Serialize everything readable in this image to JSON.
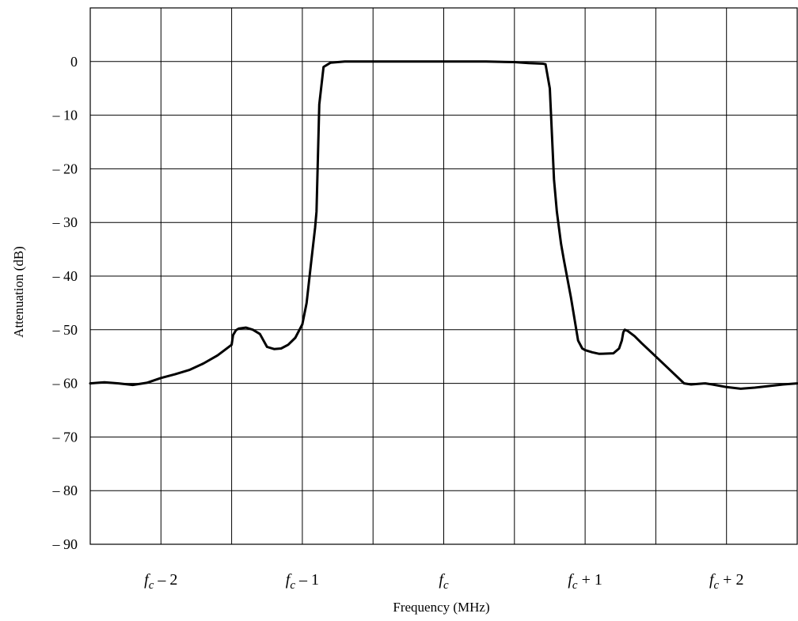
{
  "chart_data": {
    "type": "line",
    "xlabel": "Frequency (MHz)",
    "ylabel": "Attenuation (dB)",
    "xlim": [
      -2.5,
      2.5
    ],
    "ylim": [
      -90,
      10
    ],
    "grid": true,
    "y_ticks": [
      {
        "value": 0,
        "label": "0"
      },
      {
        "value": -10,
        "label": "– 10"
      },
      {
        "value": -20,
        "label": "– 20"
      },
      {
        "value": -30,
        "label": "– 30"
      },
      {
        "value": -40,
        "label": "– 40"
      },
      {
        "value": -50,
        "label": "– 50"
      },
      {
        "value": -60,
        "label": "– 60"
      },
      {
        "value": -70,
        "label": "– 70"
      },
      {
        "value": -80,
        "label": "– 80"
      },
      {
        "value": -90,
        "label": "– 90"
      }
    ],
    "x_gridlines": [
      -2,
      -1.5,
      -1,
      -0.5,
      0,
      0.5,
      1,
      1.5,
      2
    ],
    "x_ticks": [
      {
        "value": -2,
        "base": "f",
        "sub": "c",
        "suffix": " – 2"
      },
      {
        "value": -1,
        "base": "f",
        "sub": "c",
        "suffix": " – 1"
      },
      {
        "value": 0,
        "base": "f",
        "sub": "c",
        "suffix": ""
      },
      {
        "value": 1,
        "base": "f",
        "sub": "c",
        "suffix": " + 1"
      },
      {
        "value": 2,
        "base": "f",
        "sub": "c",
        "suffix": " + 2"
      }
    ],
    "series": [
      {
        "x": [
          -2.5,
          -2.4,
          -2.3,
          -2.2,
          -2.1,
          -2.0,
          -1.9,
          -1.8,
          -1.7,
          -1.6,
          -1.55,
          -1.5,
          -1.49,
          -1.47,
          -1.45,
          -1.4,
          -1.35,
          -1.3,
          -1.25,
          -1.2,
          -1.15,
          -1.1,
          -1.05,
          -1.0,
          -0.97,
          -0.94,
          -0.91,
          -0.9,
          -0.88,
          -0.85,
          -0.8,
          -0.7,
          -0.5,
          -0.3,
          0.0,
          0.3,
          0.5,
          0.6,
          0.7,
          0.72,
          0.75,
          0.78,
          0.8,
          0.83,
          0.85,
          0.9,
          0.95,
          0.98,
          1.0,
          1.05,
          1.1,
          1.2,
          1.24,
          1.26,
          1.27,
          1.28,
          1.3,
          1.35,
          1.4,
          1.5,
          1.6,
          1.7,
          1.75,
          1.8,
          1.85,
          1.9,
          2.0,
          2.1,
          2.2,
          2.3,
          2.4,
          2.5
        ],
        "y": [
          -60.0,
          -59.8,
          -60.0,
          -60.3,
          -59.9,
          -59.0,
          -58.3,
          -57.5,
          -56.3,
          -54.8,
          -53.8,
          -52.8,
          -51.0,
          -50.1,
          -49.8,
          -49.6,
          -50.0,
          -50.8,
          -53.2,
          -53.6,
          -53.5,
          -52.8,
          -51.5,
          -49.0,
          -45.0,
          -38.0,
          -31.0,
          -28.0,
          -8.0,
          -1.0,
          -0.2,
          0.0,
          0.0,
          0.0,
          0.0,
          0.0,
          -0.1,
          -0.3,
          -0.4,
          -0.5,
          -5.0,
          -22.0,
          -28.0,
          -34.0,
          -37.0,
          -44.0,
          -52.0,
          -53.5,
          -53.8,
          -54.2,
          -54.5,
          -54.4,
          -53.5,
          -52.0,
          -50.5,
          -50.0,
          -50.2,
          -51.2,
          -52.5,
          -55.0,
          -57.5,
          -60.0,
          -60.2,
          -60.1,
          -60.0,
          -60.2,
          -60.7,
          -61.0,
          -60.8,
          -60.5,
          -60.2,
          -60.0
        ]
      }
    ]
  }
}
